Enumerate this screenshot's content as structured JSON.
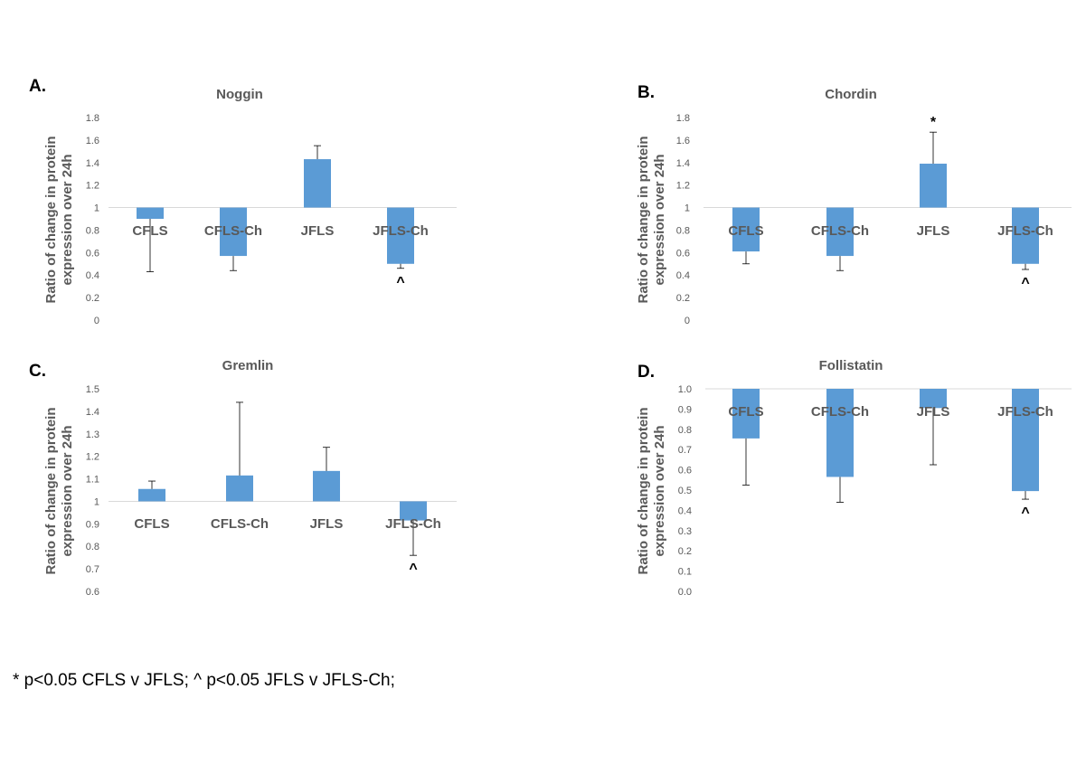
{
  "footnote": "* p<0.05 CFLS v JFLS; ^ p<0.05 JFLS v JFLS-Ch;",
  "chart_data": [
    {
      "panel": "A.",
      "type": "bar",
      "title": "Noggin",
      "ylabel": "Ratio of change in protein expression over 24h",
      "ylabel_lines": [
        "Ratio of change in protein",
        "expression over 24h"
      ],
      "categories": [
        "CFLS",
        "CFLS-Ch",
        "JFLS",
        "JFLS-Ch"
      ],
      "values": [
        0.9,
        0.57,
        1.43,
        0.5
      ],
      "error_ends": [
        0.43,
        0.44,
        1.55,
        0.46
      ],
      "markers": [
        "",
        "",
        "",
        "^"
      ],
      "baseline": 1,
      "ylim": [
        0,
        1.8
      ],
      "yticks": [
        "0",
        "0.2",
        "0.4",
        "0.6",
        "0.8",
        "1",
        "1.2",
        "1.4",
        "1.6",
        "1.8"
      ],
      "grid": false,
      "color": "#5b9bd5"
    },
    {
      "panel": "B.",
      "type": "bar",
      "title": "Chordin",
      "ylabel": "Ratio of change in protein expression over 24h",
      "ylabel_lines": [
        "Ratio of change in protein",
        "expression over 24h"
      ],
      "categories": [
        "CFLS",
        "CFLS-Ch",
        "JFLS",
        "JFLS-Ch"
      ],
      "values": [
        0.61,
        0.57,
        1.39,
        0.5
      ],
      "error_ends": [
        0.5,
        0.44,
        1.67,
        0.45
      ],
      "markers": [
        "",
        "",
        "*",
        "^"
      ],
      "baseline": 1,
      "ylim": [
        0,
        1.8
      ],
      "yticks": [
        "0",
        "0.2",
        "0.4",
        "0.6",
        "0.8",
        "1",
        "1.2",
        "1.4",
        "1.6",
        "1.8"
      ],
      "grid": false,
      "color": "#5b9bd5"
    },
    {
      "panel": "C.",
      "type": "bar",
      "title": "Gremlin",
      "ylabel": "Ratio of change in protein expression over 24h",
      "ylabel_lines": [
        "Ratio of change in protein",
        "expression over 24h"
      ],
      "categories": [
        "CFLS",
        "CFLS-Ch",
        "JFLS",
        "JFLS-Ch"
      ],
      "values": [
        1.055,
        1.115,
        1.135,
        0.915
      ],
      "error_ends": [
        1.09,
        1.44,
        1.24,
        0.76
      ],
      "markers": [
        "",
        "",
        "",
        "^"
      ],
      "baseline": 1,
      "ylim": [
        0.6,
        1.5
      ],
      "yticks": [
        "0.6",
        "0.7",
        "0.8",
        "0.9",
        "1",
        "1.1",
        "1.2",
        "1.3",
        "1.4",
        "1.5"
      ],
      "grid": false,
      "color": "#5b9bd5"
    },
    {
      "panel": "D.",
      "type": "bar",
      "title": "Follistatin",
      "ylabel": "Ratio of change in protein expression over 24h",
      "ylabel_lines": [
        "Ratio of change in protein",
        "expression over 24h"
      ],
      "categories": [
        "CFLS",
        "CFLS-Ch",
        "JFLS",
        "JFLS-Ch"
      ],
      "values": [
        0.755,
        0.565,
        0.905,
        0.495
      ],
      "error_ends": [
        0.525,
        0.44,
        0.625,
        0.455
      ],
      "markers": [
        "",
        "",
        "",
        "^"
      ],
      "baseline": 1,
      "ylim": [
        0,
        1
      ],
      "yticks": [
        "0.0",
        "0.1",
        "0.2",
        "0.3",
        "0.4",
        "0.5",
        "0.6",
        "0.7",
        "0.8",
        "0.9",
        "1.0"
      ],
      "grid": false,
      "color": "#5b9bd5"
    }
  ]
}
